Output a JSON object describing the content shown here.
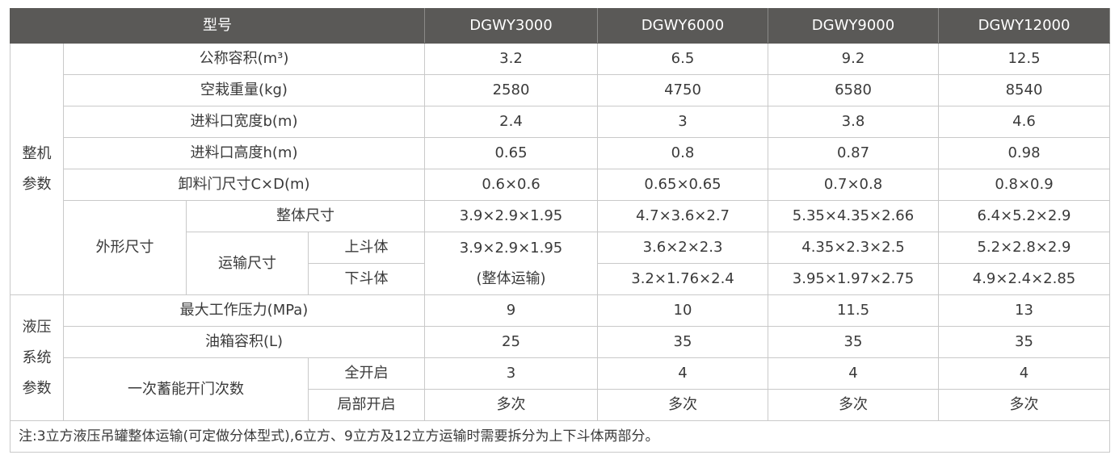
{
  "header": {
    "model_label": "型号",
    "models": [
      "DGWY3000",
      "DGWY6000",
      "DGWY9000",
      "DGWY12000"
    ]
  },
  "colors": {
    "header_bg": "#5a5957",
    "border": "#c9c9c9",
    "text": "#3a3a3a"
  },
  "machine": {
    "group_line1": "整机",
    "group_line2": "参数",
    "rows": [
      {
        "label": "公称容积(m³)",
        "values": [
          "3.2",
          "6.5",
          "9.2",
          "12.5"
        ]
      },
      {
        "label": "空栽重量(kg)",
        "values": [
          "2580",
          "4750",
          "6580",
          "8540"
        ]
      },
      {
        "label": "进料口宽度b(m)",
        "values": [
          "2.4",
          "3",
          "3.8",
          "4.6"
        ]
      },
      {
        "label": "进料口高度h(m)",
        "values": [
          "0.65",
          "0.8",
          "0.87",
          "0.98"
        ]
      },
      {
        "label": "卸料门尺寸C×D(m)",
        "values": [
          "0.6×0.6",
          "0.65×0.65",
          "0.7×0.8",
          "0.8×0.9"
        ]
      }
    ],
    "dimensions": {
      "label": "外形尺寸",
      "overall": {
        "label": "整体尺寸",
        "values": [
          "3.9×2.9×1.95",
          "4.7×3.6×2.7",
          "5.35×4.35×2.66",
          "6.4×5.2×2.9"
        ]
      },
      "transport": {
        "label": "运输尺寸",
        "merged_first": {
          "line1": "3.9×2.9×1.95",
          "line2": "(整体运输)"
        },
        "upper": {
          "label": "上斗体",
          "values": [
            "3.6×2×2.3",
            "4.35×2.3×2.5",
            "5.2×2.8×2.9"
          ]
        },
        "lower": {
          "label": "下斗体",
          "values": [
            "3.2×1.76×2.4",
            "3.95×1.97×2.75",
            "4.9×2.4×2.85"
          ]
        }
      }
    }
  },
  "hydraulic": {
    "group_line1": "液压",
    "group_line2": "系统",
    "group_line3": "参数",
    "rows": [
      {
        "label": "最大工作压力(MPa)",
        "values": [
          "9",
          "10",
          "11.5",
          "13"
        ]
      },
      {
        "label": "油箱容积(L)",
        "values": [
          "25",
          "35",
          "35",
          "35"
        ]
      }
    ],
    "door": {
      "label": "一次蓄能开门次数",
      "full": {
        "label": "全开启",
        "values": [
          "3",
          "4",
          "4",
          "4"
        ]
      },
      "partial": {
        "label": "局部开启",
        "values": [
          "多次",
          "多次",
          "多次",
          "多次"
        ]
      }
    }
  },
  "note": "注:3立方液压吊罐整体运输(可定做分体型式),6立方、9立方及12立方运输时需要拆分为上下斗体两部分。"
}
